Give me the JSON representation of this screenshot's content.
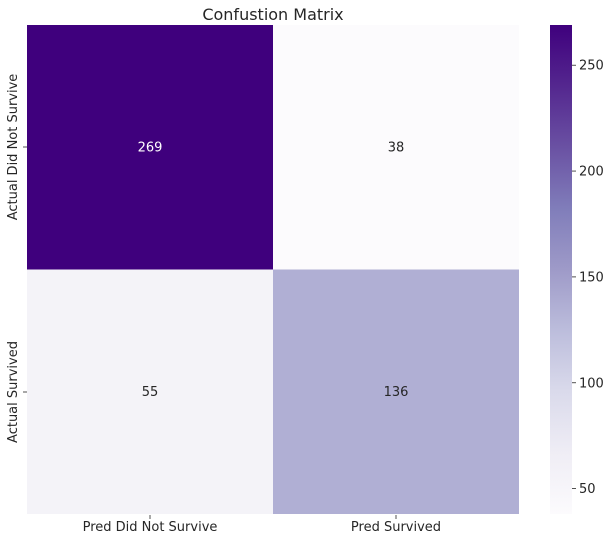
{
  "chart_data": {
    "type": "heatmap",
    "title": "Confustion Matrix",
    "xlabel": "",
    "ylabel": "",
    "row_labels": [
      "Actual Did Not Survive",
      "Actual Survived"
    ],
    "col_labels": [
      "Pred Did Not Survive",
      "Pred Survived"
    ],
    "values": [
      [
        269,
        38
      ],
      [
        55,
        136
      ]
    ],
    "colormap": "Purples",
    "colorbar": {
      "range": [
        38,
        269
      ],
      "ticks": [
        50,
        100,
        150,
        200,
        250
      ],
      "tick_labels": [
        "50",
        "100",
        "150",
        "200",
        "250"
      ]
    },
    "grid": false,
    "text_colors": {
      "dark_cell": "#ffffff",
      "light_cell": "#262626"
    }
  }
}
